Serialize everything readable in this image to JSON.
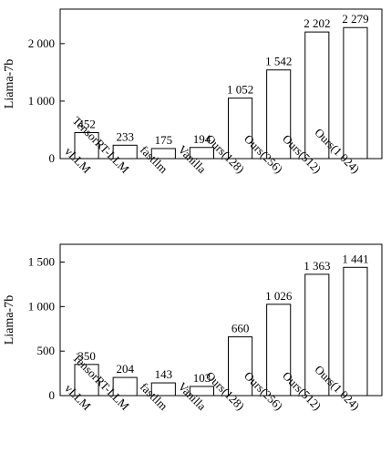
{
  "chart_data": [
    {
      "type": "bar",
      "ylabel": "Liama-7b",
      "xlabel": "",
      "ylim": [
        0,
        2600
      ],
      "yticks": [
        0,
        1000,
        2000
      ],
      "ytick_labels": [
        "0",
        "1 000",
        "2 000"
      ],
      "categories": [
        "vLLM",
        "TensorRT-LLM",
        "fastllm",
        "Vanilla",
        "Ours(128)",
        "Ours(256)",
        "Ours(512)",
        "Ours(1 024)"
      ],
      "values": [
        452,
        233,
        175,
        194,
        1052,
        1542,
        2202,
        2279
      ],
      "value_labels": [
        "452",
        "233",
        "175",
        "194",
        "1 052",
        "1 542",
        "2 202",
        "2 279"
      ],
      "grid": false,
      "legend": "none"
    },
    {
      "type": "bar",
      "ylabel": "Liama-7b",
      "xlabel": "",
      "ylim": [
        0,
        1700
      ],
      "yticks": [
        0,
        500,
        1000,
        1500
      ],
      "ytick_labels": [
        "0",
        "500",
        "1 000",
        "1 500"
      ],
      "categories": [
        "vLLM",
        "TensorRT-LLM",
        "fastllm",
        "Vanilla",
        "Ours(128)",
        "Ours(256)",
        "Ours(512)",
        "Ours(1 024)"
      ],
      "values": [
        350,
        204,
        143,
        103,
        660,
        1026,
        1363,
        1441
      ],
      "value_labels": [
        "350",
        "204",
        "143",
        "103",
        "660",
        "1 026",
        "1 363",
        "1 441"
      ],
      "grid": false,
      "legend": "none"
    }
  ]
}
